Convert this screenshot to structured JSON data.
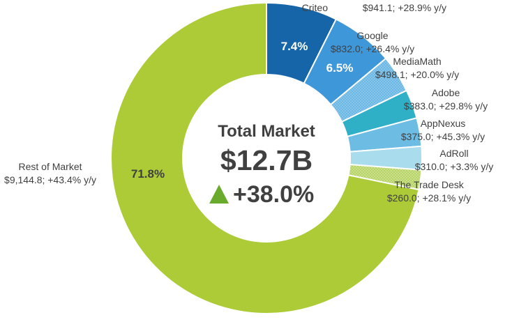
{
  "chart_data": {
    "type": "donut",
    "center": {
      "title": "Total Market",
      "total": "$12.7B",
      "growth": "+38.0%",
      "growth_icon": "up-triangle-icon"
    },
    "segments": [
      {
        "name": "Criteo",
        "value": 941.1,
        "detail": "$941.1; +28.9% y/y",
        "pct_label": "7.4%",
        "color": "#1565A8"
      },
      {
        "name": "Google",
        "value": 832.0,
        "detail": "$832.0; +26.4% y/y",
        "pct_label": "6.5%",
        "color": "#3E97D9"
      },
      {
        "name": "MediaMath",
        "value": 498.1,
        "detail": "$498.1; +20.0% y/y",
        "pct_label": "",
        "color": "#7FC3E8",
        "pattern": "dots"
      },
      {
        "name": "Adobe",
        "value": 383.0,
        "detail": "$383.0; +29.8% y/y",
        "pct_label": "",
        "color": "#2FB0C6"
      },
      {
        "name": "AppNexus",
        "value": 375.0,
        "detail": "$375.0; +45.3% y/y",
        "pct_label": "",
        "color": "#6DBCE3"
      },
      {
        "name": "AdRoll",
        "value": 310.0,
        "detail": "$310.0; +3.3% y/y",
        "pct_label": "",
        "color": "#A9DDEE"
      },
      {
        "name": "The Trade Desk",
        "value": 260.0,
        "detail": "$260.0; +28.1% y/y",
        "pct_label": "",
        "color": "#C8E07A",
        "pattern": "dots"
      },
      {
        "name": "Rest of Market",
        "value": 9144.8,
        "detail": "$9,144.8; +43.4% y/y",
        "pct_label": "71.8%",
        "color": "#ACCB36"
      }
    ],
    "colors": {
      "accent_up": "#6AAB2E",
      "pct_light": "#ffffff",
      "pct_dark": "#404040"
    }
  }
}
